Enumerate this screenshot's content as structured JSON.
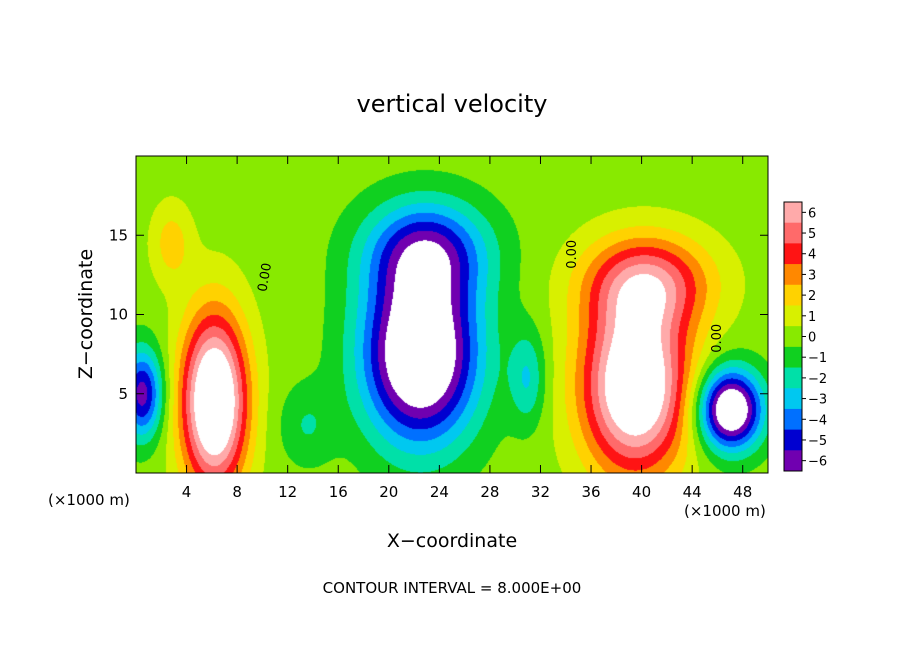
{
  "chart_data": {
    "type": "heatmap",
    "title": "vertical velocity",
    "xlabel": "X−coordinate",
    "ylabel": "Z−coordinate",
    "x_unit_left": "(×1000 m)",
    "x_unit_right": "(×1000 m)",
    "xlim": [
      0,
      50
    ],
    "ylim": [
      0,
      20
    ],
    "xticks": [
      4,
      8,
      12,
      16,
      20,
      24,
      28,
      32,
      36,
      40,
      44,
      48
    ],
    "yticks": [
      5,
      10,
      15
    ],
    "xtick_labels": [
      "4",
      "8",
      "12",
      "16",
      "20",
      "24",
      "28",
      "32",
      "36",
      "40",
      "44",
      "48"
    ],
    "ytick_labels": [
      "5",
      "10",
      "15"
    ],
    "colorbar": {
      "levels": [
        6,
        5,
        4,
        3,
        2,
        1,
        0,
        -1,
        -2,
        -3,
        -4,
        -5,
        -6
      ],
      "labels": [
        "6",
        "5",
        "4",
        "3",
        "2",
        "1",
        "0",
        "−1",
        "−2",
        "−3",
        "−4",
        "−5",
        "−6"
      ],
      "colors": [
        "#ffaaaa",
        "#ff6a6a",
        "#ff1414",
        "#ff8800",
        "#ffd200",
        "#d8f000",
        "#88ea00",
        "#10d020",
        "#00e0a8",
        "#00c8f0",
        "#0070ff",
        "#0000d0",
        "#7000b0"
      ]
    },
    "contour_label": "0.00",
    "footer": "CONTOUR INTERVAL = 8.000E+00",
    "features": [
      {
        "kind": "updraft",
        "x": 6.2,
        "z": 4.5,
        "peak": 8
      },
      {
        "kind": "downdraft",
        "x": 22.5,
        "z": 7.5,
        "peak": -8
      },
      {
        "kind": "downdraft",
        "x": 23.0,
        "z": 14.0,
        "peak": -5
      },
      {
        "kind": "updraft",
        "x": 39.5,
        "z": 5.5,
        "peak": 8
      },
      {
        "kind": "updraft",
        "x": 40.5,
        "z": 12.0,
        "peak": 5
      },
      {
        "kind": "updraft",
        "x": 2.8,
        "z": 14.5,
        "peak": 2
      },
      {
        "kind": "downdraft",
        "x": 47.0,
        "z": 4.0,
        "peak": -8
      },
      {
        "kind": "downdraft",
        "x": 0.5,
        "z": 5.0,
        "peak": -6
      }
    ]
  }
}
